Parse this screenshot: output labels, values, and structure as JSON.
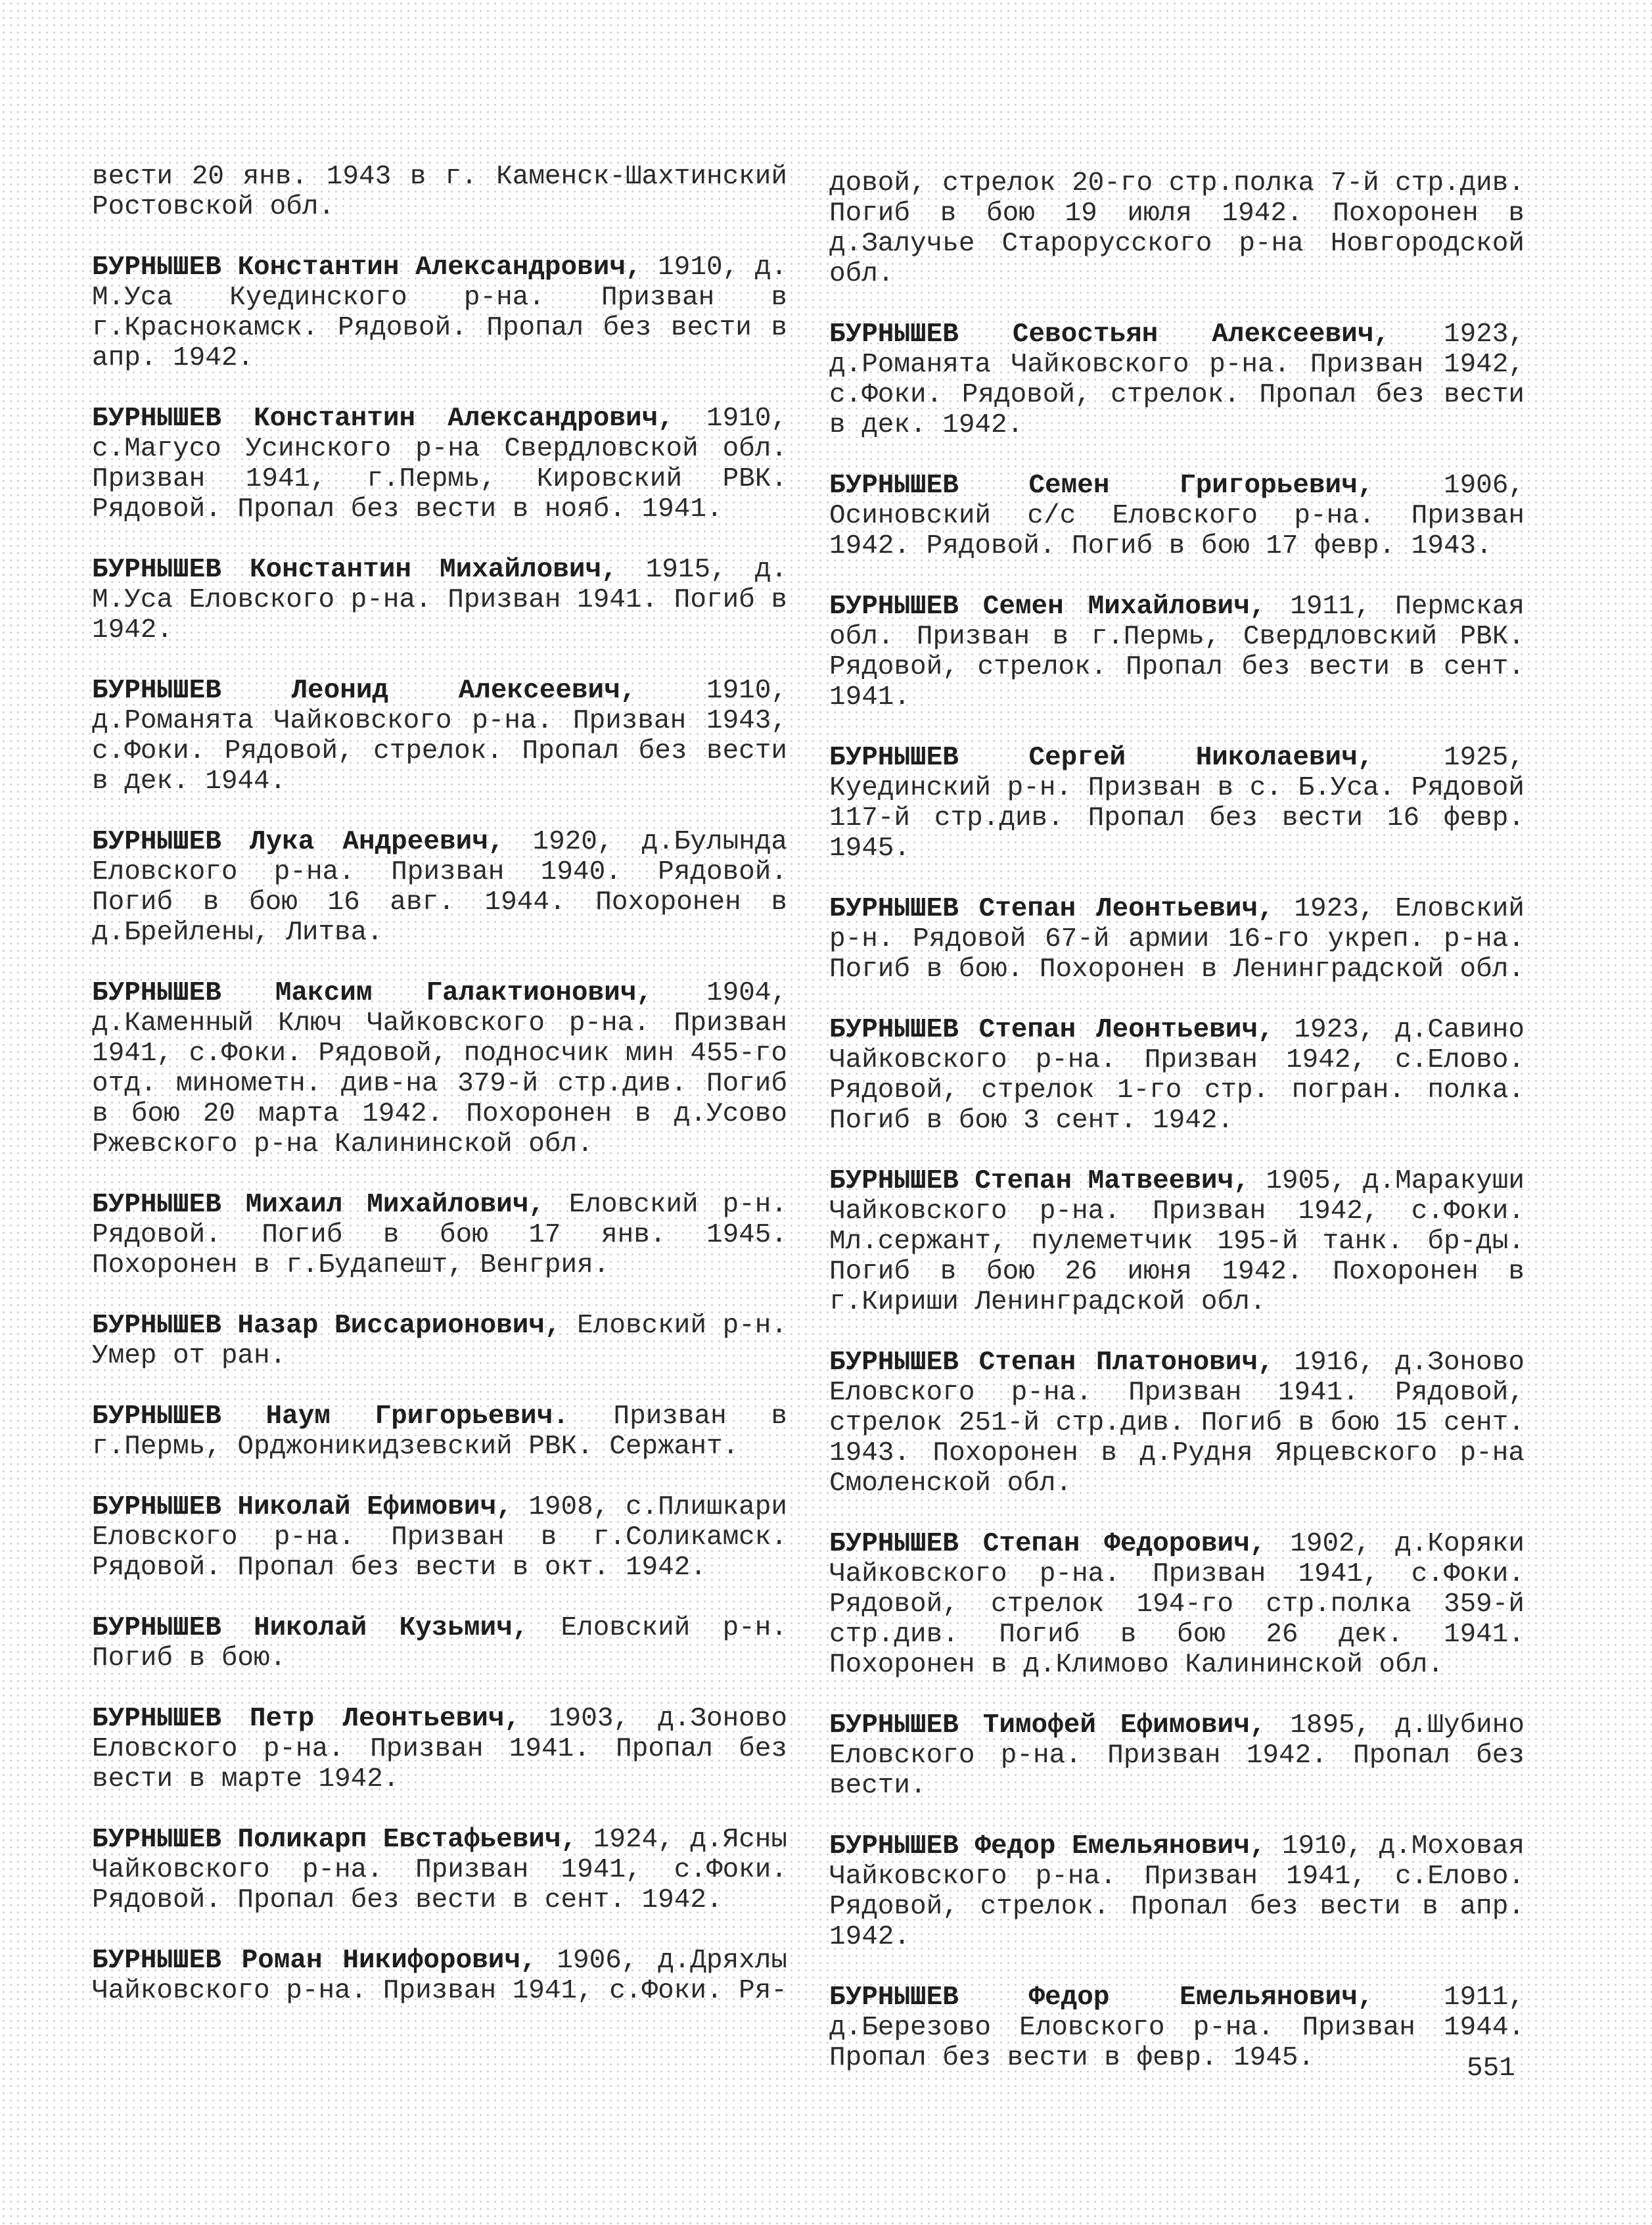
{
  "page_number": "551",
  "left_column": [
    {
      "name": "",
      "text": "вести 20 янв. 1943 в г. Каменск-Шахтинский Ростовской обл."
    },
    {
      "name": "БУРНЫШЕВ Константин Александрович,",
      "text": " 1910, д. М.Уса Куединского р-на. Призван в г.Краснокамск. Рядовой. Пропал без вести в апр. 1942."
    },
    {
      "name": "БУРНЫШЕВ Константин Александрович,",
      "text": " 1910, с.Магусо Усинского р-на Свердловской обл. Призван 1941, г.Пермь, Кировский РВК. Рядовой. Пропал без вести в нояб. 1941."
    },
    {
      "name": "БУРНЫШЕВ Константин Михайлович,",
      "text": " 1915, д. М.Уса Еловского р-на. Призван 1941. Погиб в 1942."
    },
    {
      "name": "БУРНЫШЕВ Леонид Алексеевич,",
      "text": " 1910, д.Романята Чайковского р-на. Призван 1943, с.Фоки. Рядовой, стрелок. Пропал без вести в дек. 1944."
    },
    {
      "name": "БУРНЫШЕВ Лука Андреевич,",
      "text": " 1920, д.Булында Еловского р-на. Призван 1940. Рядовой. Погиб в бою 16 авг. 1944. Похоронен в д.Брейлены, Литва."
    },
    {
      "name": "БУРНЫШЕВ Максим Галактионович,",
      "text": " 1904, д.Каменный Ключ Чайковского р-на. Призван 1941, с.Фоки. Рядовой, подносчик мин 455-го отд. минометн. див-на 379-й стр.див. Погиб в бою 20 марта 1942. Похоронен в д.Усово Ржевского р-на Калининской обл."
    },
    {
      "name": "БУРНЫШЕВ Михаил Михайлович,",
      "text": " Еловский р-н. Рядовой. Погиб в бою 17 янв. 1945. Похоронен в г.Будапешт, Венгрия."
    },
    {
      "name": "БУРНЫШЕВ Назар Виссарионович,",
      "text": " Еловский р-н. Умер от ран."
    },
    {
      "name": "БУРНЫШЕВ Наум Григорьевич.",
      "text": " Призван в г.Пермь, Орджоникидзевский РВК. Сержант."
    },
    {
      "name": "БУРНЫШЕВ Николай Ефимович,",
      "text": " 1908, с.Плишкари Еловского р-на. Призван в г.Соликамск. Рядовой. Пропал без вести в окт. 1942."
    },
    {
      "name": "БУРНЫШЕВ Николай Кузьмич,",
      "text": " Еловский р-н. Погиб в бою."
    },
    {
      "name": "БУРНЫШЕВ Петр Леонтьевич,",
      "text": " 1903, д.Зоново Еловского р-на. Призван 1941. Пропал без вести в марте 1942."
    },
    {
      "name": "БУРНЫШЕВ Поликарп Евстафьевич,",
      "text": " 1924, д.Ясны Чайковского р-на. Призван 1941, с.Фоки. Рядовой. Пропал без вести в сент. 1942."
    },
    {
      "name": "БУРНЫШЕВ Роман Никифорович,",
      "text": " 1906, д.Дряхлы Чайковского р-на. Призван 1941, с.Фоки. Ря-"
    }
  ],
  "right_column": [
    {
      "name": "",
      "text": "довой, стрелок 20-го стр.полка 7-й стр.див. Погиб в бою 19 июля 1942. Похоронен в д.Залучье Старорусского р-на Новгородской обл."
    },
    {
      "name": "БУРНЫШЕВ Севостьян Алексеевич,",
      "text": " 1923, д.Романята Чайковского р-на. Призван 1942, с.Фоки. Рядовой, стрелок. Пропал без вести в дек. 1942."
    },
    {
      "name": "БУРНЫШЕВ Семен Григорьевич,",
      "text": " 1906, Осиновский с/с Еловского р-на. Призван 1942. Рядовой. Погиб в бою 17 февр. 1943."
    },
    {
      "name": "БУРНЫШЕВ Семен Михайлович,",
      "text": " 1911, Пермская обл. Призван в г.Пермь, Свердловский РВК. Рядовой, стрелок. Пропал без вести в сент. 1941."
    },
    {
      "name": "БУРНЫШЕВ Сергей Николаевич,",
      "text": " 1925, Куединский р-н. Призван в с. Б.Уса. Рядовой 117-й стр.див. Пропал без вести 16 февр. 1945."
    },
    {
      "name": "БУРНЫШЕВ Степан Леонтьевич,",
      "text": " 1923, Еловский р-н. Рядовой 67-й армии 16-го укреп. р-на. Погиб в бою. Похоронен в Ленинградской обл."
    },
    {
      "name": "БУРНЫШЕВ Степан Леонтьевич,",
      "text": " 1923, д.Савино Чайковского р-на. Призван 1942, с.Елово. Рядовой, стрелок 1-го стр. погран. полка. Погиб в бою 3 сент. 1942."
    },
    {
      "name": "БУРНЫШЕВ Степан Матвеевич,",
      "text": " 1905, д.Маракуши Чайковского р-на. Призван 1942, с.Фоки. Мл.сержант, пулеметчик 195-й танк. бр-ды. Погиб в бою 26 июня 1942. Похоронен в г.Кириши Ленинградской обл."
    },
    {
      "name": "БУРНЫШЕВ Степан Платонович,",
      "text": " 1916, д.Зоново Еловского р-на. Призван 1941. Рядовой, стрелок 251-й стр.див. Погиб в бою 15 сент. 1943. Похоронен в д.Рудня Ярцевского р-на Смоленской обл."
    },
    {
      "name": "БУРНЫШЕВ Степан Федорович,",
      "text": " 1902, д.Коряки Чайковского р-на. Призван 1941, с.Фоки. Рядовой, стрелок 194-го стр.полка 359-й стр.див. Погиб в бою 26 дек. 1941. Похоронен в д.Климово Калининской обл."
    },
    {
      "name": "БУРНЫШЕВ Тимофей Ефимович,",
      "text": " 1895, д.Шубино Еловского р-на. Призван 1942. Пропал без вести."
    },
    {
      "name": "БУРНЫШЕВ Федор Емельянович,",
      "text": " 1910, д.Моховая Чайковского р-на. Призван 1941, с.Елово. Рядовой, стрелок. Пропал без вести в апр. 1942."
    },
    {
      "name": "БУРНЫШЕВ Федор Емельянович,",
      "text": " 1911, д.Березово Еловского р-на. Призван 1944. Пропал без вести в февр. 1945."
    }
  ]
}
